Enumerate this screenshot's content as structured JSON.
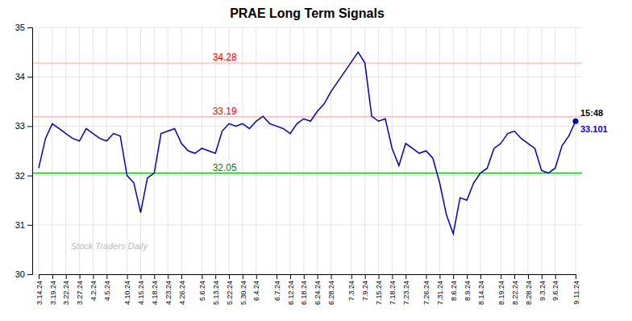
{
  "chart_data": {
    "type": "line",
    "title": "PRAE Long Term Signals",
    "categories": [
      "3.14.24",
      null,
      "3.19.24",
      null,
      "3.22.24",
      null,
      "3.27.24",
      null,
      "4.2.24",
      null,
      "4.5.24",
      null,
      null,
      "4.10.24",
      null,
      "4.15.24",
      null,
      "4.18.24",
      null,
      "4.23.24",
      null,
      "4.26.24",
      null,
      null,
      "5.6.24",
      null,
      "5.13.24",
      null,
      "5.22.24",
      null,
      "5.30.24",
      null,
      "6.4.24",
      null,
      null,
      "6.7.24",
      null,
      "6.12.24",
      null,
      "6.18.24",
      null,
      "6.24.24",
      null,
      "6.28.24",
      null,
      null,
      "7.3.24",
      null,
      "7.9.24",
      null,
      "7.15.24",
      null,
      "7.18.24",
      null,
      "7.23.24",
      null,
      null,
      "7.26.24",
      null,
      "7.31.24",
      null,
      "8.6.24",
      null,
      "8.9.24",
      null,
      "8.14.24",
      null,
      null,
      "8.19.24",
      null,
      "8.22.24",
      null,
      "8.28.24",
      null,
      "9.3.24",
      null,
      "9.6.24",
      null,
      null,
      "9.11.24"
    ],
    "values": [
      32.15,
      32.75,
      33.05,
      32.95,
      32.85,
      32.75,
      32.7,
      32.95,
      32.85,
      32.75,
      32.7,
      32.85,
      32.8,
      32.0,
      31.85,
      31.25,
      31.95,
      32.05,
      32.85,
      32.9,
      32.95,
      32.65,
      32.5,
      32.45,
      32.55,
      32.5,
      32.45,
      32.9,
      33.05,
      33.0,
      33.05,
      32.95,
      33.1,
      33.2,
      33.05,
      33.0,
      32.95,
      32.85,
      33.05,
      33.15,
      33.1,
      33.3,
      33.45,
      33.7,
      33.9,
      34.1,
      34.3,
      34.5,
      34.28,
      33.2,
      33.1,
      33.15,
      32.55,
      32.2,
      32.65,
      32.55,
      32.45,
      32.5,
      32.35,
      31.85,
      31.2,
      30.82,
      31.55,
      31.5,
      31.85,
      32.05,
      32.15,
      32.55,
      32.65,
      32.85,
      32.9,
      32.75,
      32.65,
      32.55,
      32.1,
      32.05,
      32.15,
      32.6,
      32.8,
      33.101
    ],
    "color": "#0000cc",
    "ylim": [
      30,
      35
    ],
    "yticks": [
      30,
      31,
      32,
      33,
      34,
      35
    ],
    "grid": true,
    "reference_lines": [
      {
        "value": 33.19,
        "color": "#ffbbbb",
        "label": "33.19",
        "label_color": "red"
      },
      {
        "value": 34.28,
        "color": "#ffbbbb",
        "label": "34.28",
        "label_color": "red"
      },
      {
        "value": 32.05,
        "color": "#00bb00",
        "label": "32.05",
        "label_color": "green"
      }
    ],
    "last_point": {
      "time": "15:48",
      "time_color": "black",
      "label": "33.101",
      "label_color": "blue"
    },
    "watermark": "Stock Traders Daily"
  }
}
